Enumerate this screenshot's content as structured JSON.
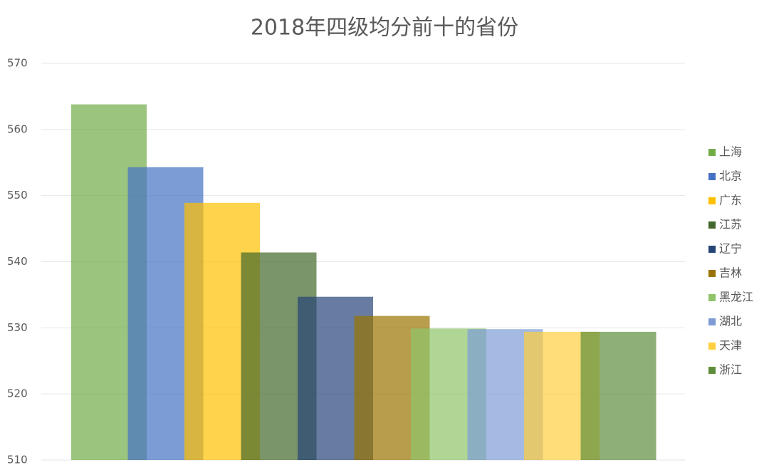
{
  "chart_data": {
    "type": "bar",
    "title": "2018年四级均分前十的省份",
    "series": [
      {
        "name": "上海",
        "color": "#70ad47",
        "values": [
          563.8
        ]
      },
      {
        "name": "北京",
        "color": "#4472c4",
        "values": [
          554.3
        ]
      },
      {
        "name": "广东",
        "color": "#ffc000",
        "values": [
          548.9
        ]
      },
      {
        "name": "江苏",
        "color": "#43682b",
        "values": [
          541.4
        ]
      },
      {
        "name": "辽宁",
        "color": "#264478",
        "values": [
          534.7
        ]
      },
      {
        "name": "吉林",
        "color": "#997300",
        "values": [
          531.8
        ]
      },
      {
        "name": "黑龙江",
        "color": "#8fc46a",
        "values": [
          529.9
        ]
      },
      {
        "name": "湖北",
        "color": "#7d9cd6",
        "values": [
          529.8
        ]
      },
      {
        "name": "天津",
        "color": "#ffcf40",
        "values": [
          529.4
        ]
      },
      {
        "name": "浙江",
        "color": "#5e8e3c",
        "values": [
          529.4
        ]
      }
    ],
    "ylim": [
      510,
      570
    ],
    "yticks": [
      510,
      520,
      530,
      540,
      550,
      560,
      570
    ],
    "grid": true,
    "legend": "right"
  }
}
